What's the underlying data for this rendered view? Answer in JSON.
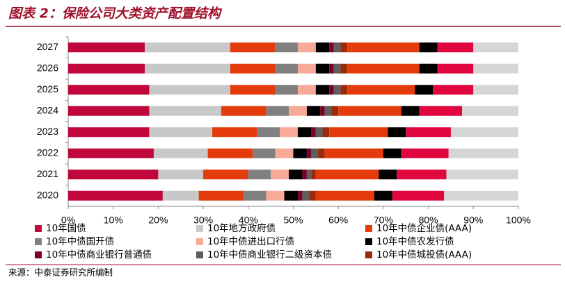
{
  "chart_data": {
    "type": "stacked-barh",
    "title": "图表 2：保险公司大类资产配置结构",
    "source": "来源：中泰证券研究所编制",
    "categories": [
      "2027",
      "2026",
      "2025",
      "2024",
      "2023",
      "2022",
      "2021",
      "2020"
    ],
    "xlim": [
      0,
      100
    ],
    "xticks": [
      {
        "value": 0,
        "label": "0%"
      },
      {
        "value": 10,
        "label": "10%"
      },
      {
        "value": 20,
        "label": "20%"
      },
      {
        "value": 30,
        "label": "30%"
      },
      {
        "value": 40,
        "label": "40%"
      },
      {
        "value": 50,
        "label": "50%"
      },
      {
        "value": 60,
        "label": "60%"
      },
      {
        "value": 70,
        "label": "70%"
      },
      {
        "value": 80,
        "label": "80%"
      },
      {
        "value": 90,
        "label": "90%"
      },
      {
        "value": 100,
        "label": "100%"
      }
    ],
    "series": [
      {
        "name": "10年国债",
        "color": "#c0063a",
        "values": [
          17,
          17,
          18,
          18,
          18,
          19,
          20,
          21
        ]
      },
      {
        "name": "10年地方政府债",
        "color": "#c8c8c8",
        "values": [
          19,
          19,
          18,
          16,
          14,
          12,
          10,
          8
        ]
      },
      {
        "name": "10年中债企业债(AAA)",
        "color": "#e33b0c",
        "values": [
          10,
          10,
          10,
          10,
          10,
          10,
          10,
          10
        ]
      },
      {
        "name": "10年中债国开债",
        "color": "#808080",
        "values": [
          5,
          5,
          5,
          5,
          5,
          5,
          5,
          5
        ]
      },
      {
        "name": "10年中债进出口行债",
        "color": "#f7aa98",
        "values": [
          4,
          4,
          4,
          4,
          4,
          4,
          4,
          4
        ]
      },
      {
        "name": "10年中债农发行债",
        "color": "#000000",
        "values": [
          3,
          3,
          3,
          3,
          3,
          3,
          3,
          3
        ]
      },
      {
        "name": "10年中债商业银行普通债",
        "color": "#7a0026",
        "values": [
          1,
          1,
          1,
          1,
          1,
          1,
          1,
          1
        ]
      },
      {
        "name": "10年中债商业银行二级资本债",
        "color": "#5e5e5e",
        "values": [
          1.5,
          1.5,
          1.5,
          1.5,
          1.5,
          1.5,
          1,
          1.5
        ]
      },
      {
        "name": "10年中债城投债(AAA)",
        "color": "#9a2a0a",
        "values": [
          1.5,
          1.5,
          1.5,
          1.5,
          1.5,
          1.5,
          1,
          1.5
        ]
      },
      {
        "color": "#e33b0c",
        "values": [
          16,
          16,
          15,
          14,
          13,
          13,
          14,
          13
        ]
      },
      {
        "color": "#000000",
        "values": [
          4,
          4,
          4,
          4,
          4,
          4,
          4,
          4
        ]
      },
      {
        "color": "#e0063e",
        "values": [
          8,
          8,
          9,
          9.5,
          10,
          10.5,
          11,
          11.5
        ]
      },
      {
        "color": "#d6d6d6",
        "values": [
          10,
          10,
          10,
          12.5,
          15,
          15.5,
          16,
          16.5
        ]
      }
    ]
  }
}
